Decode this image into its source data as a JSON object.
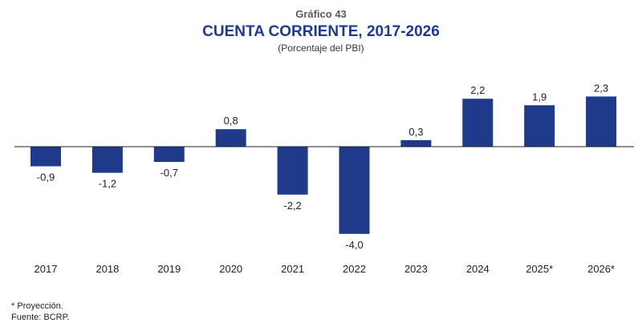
{
  "header": {
    "kicker": "Gráfico 43",
    "title": "CUENTA CORRIENTE, 2017-2026",
    "subtitle": "(Porcentaje del PBI)"
  },
  "footer": {
    "note": "* Proyección.",
    "source": "Fuente: BCRP."
  },
  "colors": {
    "bar": "#1f3a8a",
    "axis": "#222222",
    "text": "#222222"
  },
  "chart_data": {
    "type": "bar",
    "title": "CUENTA CORRIENTE, 2017-2026",
    "subtitle": "(Porcentaje del PBI)",
    "categories": [
      "2017",
      "2018",
      "2019",
      "2020",
      "2021",
      "2022",
      "2023",
      "2024",
      "2025*",
      "2026*"
    ],
    "values": [
      -0.9,
      -1.2,
      -0.7,
      0.8,
      -2.2,
      -4.0,
      0.3,
      2.2,
      1.9,
      2.3
    ],
    "value_labels": [
      "-0,9",
      "-1,2",
      "-0,7",
      "0,8",
      "-2,2",
      "-4,0",
      "0,3",
      "2,2",
      "1,9",
      "2,3"
    ],
    "ylim": [
      -4.0,
      2.3
    ],
    "grid": false,
    "legend": "none"
  }
}
